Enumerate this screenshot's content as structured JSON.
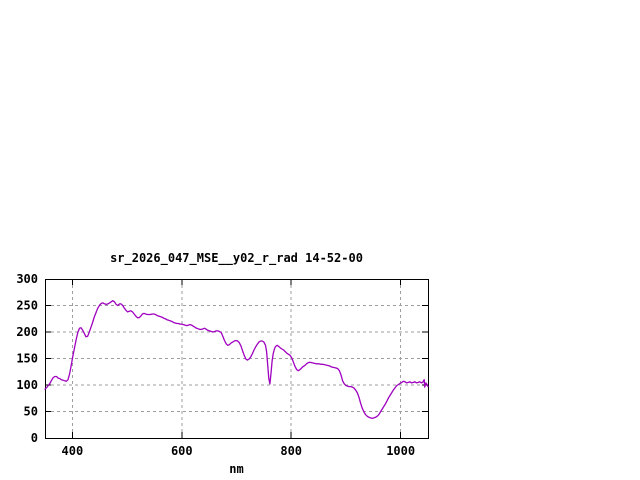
{
  "window": {
    "background": "#ffffff"
  },
  "chart_data": {
    "type": "line",
    "title": "sr_2026_047_MSE__y02_r_rad 14-52-00",
    "xlabel": "nm",
    "ylabel": "",
    "xlim": [
      350,
      1050
    ],
    "ylim": [
      0,
      300
    ],
    "x_ticks": [
      400,
      600,
      800,
      1000
    ],
    "y_ticks": [
      0,
      50,
      100,
      150,
      200,
      250,
      300
    ],
    "grid": "dashed",
    "legend": "none",
    "colors": {
      "line": "#A000C0",
      "grid": "#9E9E9E",
      "axis": "#000000",
      "text": "#000000",
      "background": "#FFFFFF"
    },
    "series": [
      {
        "name": "sr_2026_047_MSE__y02_r_rad",
        "color": "#A000C0",
        "points": [
          [
            350,
            92
          ],
          [
            353,
            95
          ],
          [
            356,
            99
          ],
          [
            359,
            103
          ],
          [
            362,
            109
          ],
          [
            365,
            114
          ],
          [
            368,
            116
          ],
          [
            371,
            116
          ],
          [
            374,
            113
          ],
          [
            377,
            112
          ],
          [
            380,
            110
          ],
          [
            383,
            109
          ],
          [
            386,
            108
          ],
          [
            389,
            107
          ],
          [
            392,
            110
          ],
          [
            395,
            121
          ],
          [
            398,
            138
          ],
          [
            401,
            155
          ],
          [
            404,
            170
          ],
          [
            407,
            186
          ],
          [
            410,
            199
          ],
          [
            413,
            207
          ],
          [
            416,
            208
          ],
          [
            419,
            203
          ],
          [
            422,
            197
          ],
          [
            425,
            191
          ],
          [
            428,
            192
          ],
          [
            431,
            200
          ],
          [
            434,
            209
          ],
          [
            437,
            218
          ],
          [
            440,
            228
          ],
          [
            443,
            236
          ],
          [
            446,
            244
          ],
          [
            450,
            251
          ],
          [
            453,
            254
          ],
          [
            456,
            255
          ],
          [
            459,
            253
          ],
          [
            462,
            252
          ],
          [
            465,
            253
          ],
          [
            468,
            255
          ],
          [
            471,
            257
          ],
          [
            474,
            259
          ],
          [
            477,
            257
          ],
          [
            480,
            252
          ],
          [
            483,
            250
          ],
          [
            486,
            253
          ],
          [
            489,
            253
          ],
          [
            492,
            250
          ],
          [
            495,
            245
          ],
          [
            498,
            241
          ],
          [
            501,
            238
          ],
          [
            504,
            239
          ],
          [
            507,
            240
          ],
          [
            510,
            238
          ],
          [
            513,
            234
          ],
          [
            516,
            230
          ],
          [
            519,
            227
          ],
          [
            522,
            227
          ],
          [
            525,
            230
          ],
          [
            528,
            234
          ],
          [
            531,
            235
          ],
          [
            534,
            234
          ],
          [
            537,
            233
          ],
          [
            540,
            233
          ],
          [
            543,
            233
          ],
          [
            546,
            234
          ],
          [
            549,
            234
          ],
          [
            552,
            233
          ],
          [
            555,
            231
          ],
          [
            558,
            230
          ],
          [
            561,
            229
          ],
          [
            564,
            228
          ],
          [
            567,
            226
          ],
          [
            570,
            225
          ],
          [
            573,
            223
          ],
          [
            576,
            222
          ],
          [
            579,
            221
          ],
          [
            582,
            220
          ],
          [
            585,
            218
          ],
          [
            588,
            217
          ],
          [
            591,
            216
          ],
          [
            594,
            216
          ],
          [
            597,
            215
          ],
          [
            600,
            215
          ],
          [
            603,
            214
          ],
          [
            606,
            213
          ],
          [
            609,
            212
          ],
          [
            612,
            213
          ],
          [
            615,
            214
          ],
          [
            618,
            213
          ],
          [
            621,
            211
          ],
          [
            624,
            209
          ],
          [
            627,
            207
          ],
          [
            630,
            206
          ],
          [
            633,
            205
          ],
          [
            636,
            205
          ],
          [
            639,
            206
          ],
          [
            642,
            207
          ],
          [
            645,
            205
          ],
          [
            648,
            203
          ],
          [
            651,
            202
          ],
          [
            654,
            201
          ],
          [
            657,
            200
          ],
          [
            660,
            201
          ],
          [
            663,
            202
          ],
          [
            666,
            202
          ],
          [
            669,
            201
          ],
          [
            672,
            199
          ],
          [
            675,
            192
          ],
          [
            678,
            184
          ],
          [
            681,
            178
          ],
          [
            684,
            175
          ],
          [
            687,
            176
          ],
          [
            690,
            179
          ],
          [
            693,
            181
          ],
          [
            696,
            183
          ],
          [
            699,
            184
          ],
          [
            702,
            183
          ],
          [
            705,
            180
          ],
          [
            708,
            174
          ],
          [
            711,
            165
          ],
          [
            714,
            156
          ],
          [
            717,
            149
          ],
          [
            720,
            147
          ],
          [
            723,
            149
          ],
          [
            726,
            153
          ],
          [
            729,
            159
          ],
          [
            732,
            166
          ],
          [
            735,
            172
          ],
          [
            738,
            177
          ],
          [
            741,
            181
          ],
          [
            744,
            183
          ],
          [
            747,
            183
          ],
          [
            750,
            181
          ],
          [
            753,
            175
          ],
          [
            755,
            163
          ],
          [
            757,
            138
          ],
          [
            759,
            112
          ],
          [
            761,
            102
          ],
          [
            763,
            122
          ],
          [
            765,
            145
          ],
          [
            767,
            159
          ],
          [
            769,
            167
          ],
          [
            771,
            172
          ],
          [
            774,
            175
          ],
          [
            777,
            173
          ],
          [
            780,
            170
          ],
          [
            783,
            168
          ],
          [
            786,
            166
          ],
          [
            789,
            163
          ],
          [
            792,
            160
          ],
          [
            795,
            158
          ],
          [
            798,
            156
          ],
          [
            801,
            151
          ],
          [
            804,
            143
          ],
          [
            807,
            135
          ],
          [
            810,
            129
          ],
          [
            813,
            127
          ],
          [
            816,
            129
          ],
          [
            819,
            132
          ],
          [
            822,
            135
          ],
          [
            825,
            137
          ],
          [
            828,
            140
          ],
          [
            831,
            142
          ],
          [
            834,
            143
          ],
          [
            838,
            142
          ],
          [
            842,
            141
          ],
          [
            846,
            140
          ],
          [
            850,
            140
          ],
          [
            854,
            139
          ],
          [
            858,
            139
          ],
          [
            862,
            138
          ],
          [
            866,
            137
          ],
          [
            870,
            136
          ],
          [
            874,
            134
          ],
          [
            878,
            133
          ],
          [
            882,
            132
          ],
          [
            885,
            131
          ],
          [
            888,
            127
          ],
          [
            891,
            119
          ],
          [
            894,
            108
          ],
          [
            897,
            102
          ],
          [
            900,
            99
          ],
          [
            903,
            98
          ],
          [
            906,
            97
          ],
          [
            909,
            97
          ],
          [
            912,
            96
          ],
          [
            915,
            94
          ],
          [
            918,
            90
          ],
          [
            921,
            85
          ],
          [
            924,
            76
          ],
          [
            927,
            65
          ],
          [
            930,
            56
          ],
          [
            933,
            49
          ],
          [
            936,
            44
          ],
          [
            939,
            41
          ],
          [
            942,
            39
          ],
          [
            945,
            38
          ],
          [
            948,
            37
          ],
          [
            951,
            38
          ],
          [
            954,
            39
          ],
          [
            957,
            41
          ],
          [
            960,
            44
          ],
          [
            963,
            49
          ],
          [
            966,
            54
          ],
          [
            969,
            59
          ],
          [
            972,
            64
          ],
          [
            975,
            70
          ],
          [
            978,
            76
          ],
          [
            981,
            81
          ],
          [
            984,
            86
          ],
          [
            987,
            91
          ],
          [
            990,
            95
          ],
          [
            993,
            99
          ],
          [
            996,
            101
          ],
          [
            999,
            103
          ],
          [
            1002,
            105
          ],
          [
            1005,
            107
          ],
          [
            1008,
            106
          ],
          [
            1011,
            104
          ],
          [
            1014,
            105
          ],
          [
            1017,
            106
          ],
          [
            1020,
            104
          ],
          [
            1023,
            105
          ],
          [
            1026,
            106
          ],
          [
            1029,
            104
          ],
          [
            1032,
            105
          ],
          [
            1035,
            106
          ],
          [
            1038,
            104
          ],
          [
            1041,
            106
          ],
          [
            1043,
            110
          ],
          [
            1044,
            96
          ],
          [
            1046,
            104
          ],
          [
            1048,
            101
          ],
          [
            1050,
            97
          ]
        ]
      }
    ]
  }
}
